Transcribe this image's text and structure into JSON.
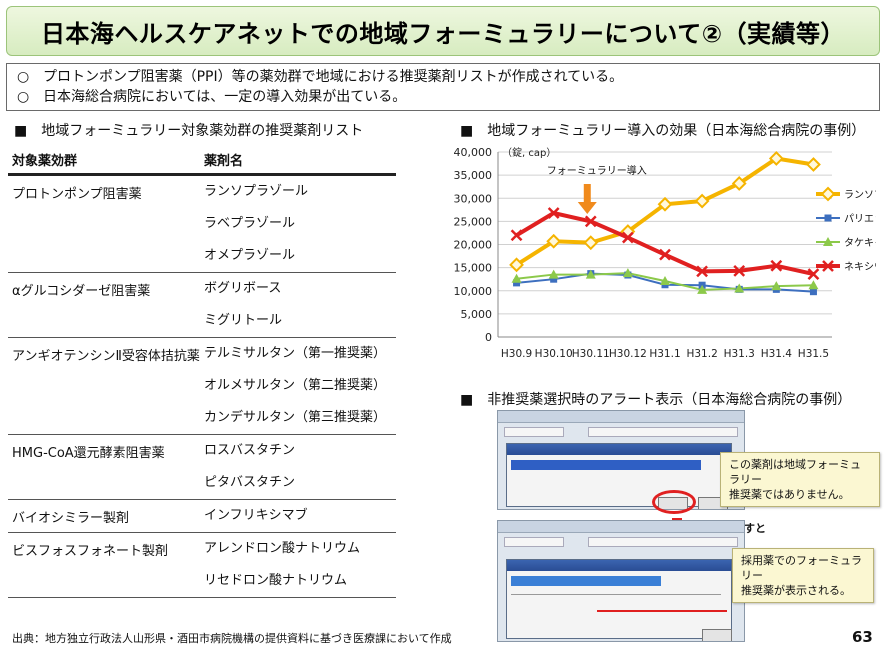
{
  "title": "日本海ヘルスケアネットでの地域フォーミュラリーについて②（実績等）",
  "intro": [
    {
      "mark": "○",
      "text": "プロトンポンプ阻害薬（PPI）等の薬効群で地域における推奨薬剤リストが作成されている。"
    },
    {
      "mark": "○",
      "text": "日本海総合病院においては、一定の導入効果が出ている。"
    }
  ],
  "list_section": {
    "mark": "■",
    "heading": "地域フォーミュラリー対象薬効群の推奨薬剤リスト",
    "col_class": "対象薬効群",
    "col_drug": "薬剤名",
    "groups": [
      {
        "cls": "プロトンポンプ阻害薬",
        "drugs": [
          "ランソプラゾール",
          "ラベプラゾール",
          "オメプラゾール"
        ]
      },
      {
        "cls": "αグルコシダーゼ阻害薬",
        "drugs": [
          "ボグリボース",
          "ミグリトール"
        ]
      },
      {
        "cls": "アンギオテンシンⅡ受容体拮抗薬",
        "drugs": [
          "テルミサルタン（第一推奨薬）",
          "オルメサルタン（第二推奨薬）",
          "カンデサルタン（第三推奨薬）"
        ]
      },
      {
        "cls": "HMG-CoA還元酵素阻害薬",
        "drugs": [
          "ロスバスタチン",
          "ピタバスタチン"
        ]
      },
      {
        "cls": "バイオシミラー製剤",
        "drugs": [
          "インフリキシマブ"
        ]
      },
      {
        "cls": "ビスフォスフォネート製剤",
        "drugs": [
          "アレンドロン酸ナトリウム",
          "リセドロン酸ナトリウム"
        ]
      }
    ]
  },
  "chart_section": {
    "mark": "■",
    "heading": "地域フォーミュラリー導入の効果（日本海総合病院の事例）"
  },
  "chart_data": {
    "type": "line",
    "title": "地域フォーミュラリー導入の効果（日本海総合病院の事例）",
    "ylabel": "（錠, cap）",
    "ylim": [
      0,
      40000
    ],
    "yticks": [
      0,
      5000,
      10000,
      15000,
      20000,
      25000,
      30000,
      35000,
      40000
    ],
    "ytick_labels": [
      "0",
      "5,000",
      "10,000",
      "15,000",
      "20,000",
      "25,000",
      "30,000",
      "35,000",
      "40,000"
    ],
    "categories": [
      "H30.9",
      "H30.10",
      "H30.11",
      "H30.12",
      "H31.1",
      "H31.2",
      "H31.3",
      "H31.4",
      "H31.5"
    ],
    "annotation": "フォーミュラリー導入",
    "annotation_index": 2,
    "series": [
      {
        "name": "ランソプラゾール",
        "color": "#f5b400",
        "marker": "diamond",
        "values": [
          15600,
          20700,
          20400,
          22800,
          28700,
          29400,
          33200,
          38600,
          37300
        ]
      },
      {
        "name": "パリエット",
        "color": "#3d6fbf",
        "marker": "square",
        "values": [
          11700,
          12500,
          13700,
          13400,
          11300,
          11200,
          10300,
          10300,
          9800
        ]
      },
      {
        "name": "タケキャブ",
        "color": "#8cc94a",
        "marker": "triangle",
        "values": [
          12600,
          13500,
          13500,
          13800,
          12100,
          10200,
          10500,
          11000,
          11200
        ]
      },
      {
        "name": "ネキシウム",
        "color": "#e02020",
        "marker": "x",
        "values": [
          22000,
          26800,
          25000,
          21500,
          17800,
          14200,
          14300,
          15400,
          13600
        ]
      }
    ]
  },
  "alert_section": {
    "mark": "■",
    "heading": "非推奨薬選択時のアラート表示（日本海総合病院の事例）",
    "callout1": [
      "この薬剤は地域フォーミュラリー",
      "推奨薬ではありません。"
    ],
    "press_label": "詳細を押すと",
    "callout2": [
      "採用薬でのフォーミュラリー",
      "推奨薬が表示される。"
    ]
  },
  "footer": "出典：地方独立行政法人山形県・酒田市病院機構の提供資料に基づき医療課において作成",
  "page_number": "63"
}
